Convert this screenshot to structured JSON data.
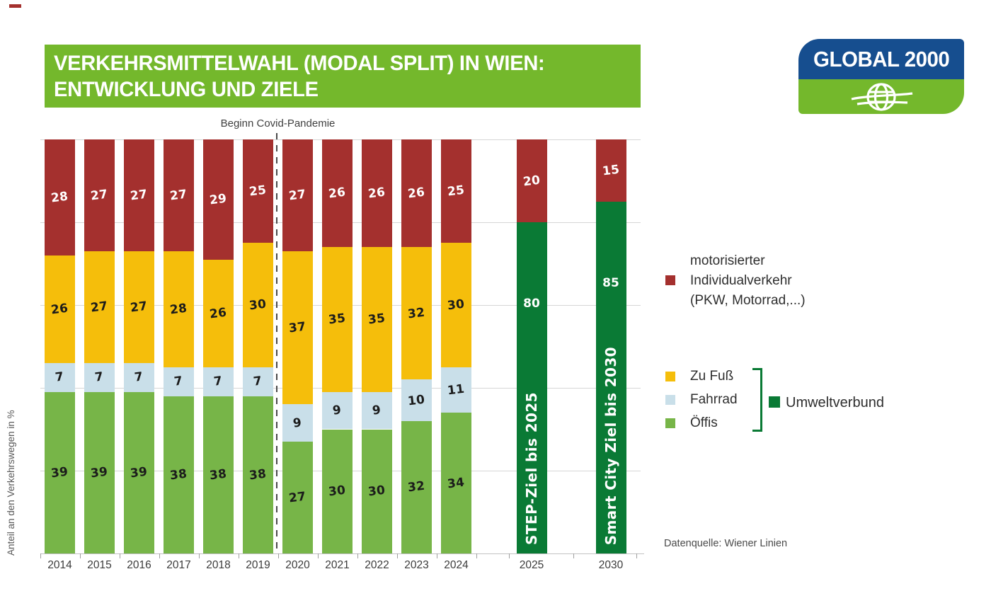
{
  "title": {
    "line1": "VERKEHRSMITTELWAHL (MODAL SPLIT) IN WIEN:",
    "line2": "ENTWICKLUNG UND ZIELE"
  },
  "logo": {
    "text": "GLOBAL 2000"
  },
  "colors": {
    "banner_green": "#74B82C",
    "logo_blue": "#164E8F",
    "miv_red": "#A4302E",
    "zufuss_yellow": "#F5BE0B",
    "fahrrad_lightblue": "#C9DFE9",
    "oeffis_green": "#77B548",
    "umweltverbund_darkgreen": "#0A7A35"
  },
  "annotation": {
    "covid_label": "Beginn Covid-Pandemie"
  },
  "axis": {
    "y_label": "Anteil an den Verkehrswegen in %"
  },
  "legend": {
    "miv": {
      "label_lines": [
        "motorisierter",
        "Individualverkehr",
        "(PKW, Motorrad,...)"
      ],
      "color": "#A4302E"
    },
    "items": [
      {
        "label": "Zu Fuß",
        "color": "#F5BE0B"
      },
      {
        "label": "Fahrrad",
        "color": "#C9DFE9"
      },
      {
        "label": "Öffis",
        "color": "#77B548"
      }
    ],
    "group": {
      "label": "Umweltverbund",
      "color": "#0A7A35"
    }
  },
  "source": {
    "label": "Datenquelle: Wiener Linien"
  },
  "chart_data": {
    "type": "bar",
    "stacked": true,
    "title": "Verkehrsmittelwahl (Modal Split) in Wien: Entwicklung und Ziele",
    "xlabel": "",
    "ylabel": "Anteil an den Verkehrswegen in %",
    "ylim": [
      0,
      100
    ],
    "gridlines": [
      20,
      40,
      60,
      80,
      100
    ],
    "legend_position": "right",
    "categories": [
      "2014",
      "2015",
      "2016",
      "2017",
      "2018",
      "2019",
      "2020",
      "2021",
      "2022",
      "2023",
      "2024",
      "2025",
      "2030"
    ],
    "series": [
      {
        "name": "Öffis",
        "color": "#77B548",
        "label_color": "#1b1b1b",
        "values": [
          39,
          39,
          39,
          38,
          38,
          38,
          27,
          30,
          30,
          32,
          34,
          null,
          null
        ]
      },
      {
        "name": "Fahrrad",
        "color": "#C9DFE9",
        "label_color": "#1b1b1b",
        "values": [
          7,
          7,
          7,
          7,
          7,
          7,
          9,
          9,
          9,
          10,
          11,
          null,
          null
        ]
      },
      {
        "name": "Zu Fuß",
        "color": "#F5BE0B",
        "label_color": "#1b1b1b",
        "values": [
          26,
          27,
          27,
          28,
          26,
          30,
          37,
          35,
          35,
          32,
          30,
          null,
          null
        ]
      },
      {
        "name": "Umweltverbund",
        "color": "#0A7A35",
        "label_color": "#ffffff",
        "values": [
          null,
          null,
          null,
          null,
          null,
          null,
          null,
          null,
          null,
          null,
          null,
          80,
          85
        ]
      },
      {
        "name": "motorisierter Individualverkehr (PKW, Motorrad,...)",
        "color": "#A4302E",
        "label_color": "#ffffff",
        "values": [
          28,
          27,
          27,
          27,
          29,
          25,
          27,
          26,
          26,
          26,
          25,
          20,
          15
        ]
      }
    ],
    "target_labels": {
      "2025": "STEP-Ziel bis 2025",
      "2030": "Smart City Ziel bis 2030"
    },
    "annotations": [
      {
        "text": "Beginn Covid-Pandemie",
        "position": "vertical dashed line between 2019 and 2020"
      }
    ]
  }
}
